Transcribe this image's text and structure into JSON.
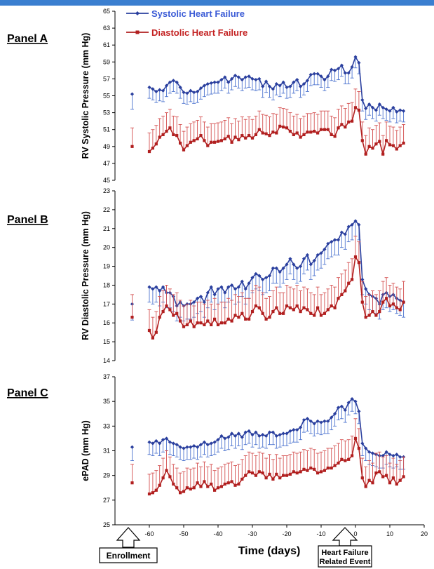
{
  "colors": {
    "background": "#1f5fb0",
    "panel": "#ffffff",
    "systolic": "#2a3f9e",
    "systolic_err": "#4d74cf",
    "diastolic": "#b11f1f",
    "diastolic_err": "#d45050"
  },
  "panel_labels": [
    "Panel A",
    "Panel B",
    "Panel C"
  ],
  "chart_data": [
    {
      "type": "line",
      "ylabel": "RV Systolic Pressure (mm Hg)",
      "ylim": [
        45,
        65
      ],
      "yticks": [
        45,
        47,
        49,
        51,
        53,
        55,
        57,
        59,
        61,
        63,
        65
      ],
      "xlim": [
        -70,
        20
      ],
      "grid": false,
      "legend": {
        "placement": "top-center",
        "entries": [
          "Systolic Heart Failure",
          "Diastolic Heart Failure"
        ]
      },
      "series": [
        {
          "name": "Systolic Heart Failure",
          "enrollment": {
            "x": -65,
            "y": 55.2,
            "err": 1.8
          },
          "x_start": -60,
          "x_step": 1,
          "values": [
            56,
            55.8,
            55.5,
            55.7,
            55.6,
            56.2,
            56.6,
            56.8,
            56.6,
            56,
            55.4,
            55.3,
            55.6,
            55.4,
            55.5,
            55.9,
            56.2,
            56.4,
            56.5,
            56.6,
            56.6,
            56.9,
            57.2,
            56.6,
            57,
            57.4,
            57.2,
            56.9,
            57.2,
            57.3,
            57,
            56.9,
            57,
            56.1,
            56.7,
            56.1,
            55.8,
            56.4,
            56.2,
            56.6,
            56,
            56.1,
            56.6,
            56.9,
            56.1,
            56.4,
            56.8,
            57.5,
            57.6,
            57.6,
            57.3,
            56.9,
            57.3,
            58.1,
            58,
            58.2,
            58.6,
            57.7,
            57.7,
            58.4,
            59.6,
            58.9,
            54.5,
            53.5,
            54,
            53.6,
            53.3,
            54,
            53.6,
            53.4,
            53.2,
            53.6,
            53.1,
            53.3,
            53.2
          ],
          "err": 1.3
        },
        {
          "name": "Diastolic Heart Failure",
          "enrollment": {
            "x": -65,
            "y": 49,
            "err": 2.2
          },
          "x_start": -60,
          "x_step": 1,
          "values": [
            48.4,
            48.8,
            49.3,
            50.1,
            50.4,
            50.8,
            51.2,
            50.4,
            50.3,
            49.4,
            48.6,
            49.1,
            49.5,
            49.7,
            49.9,
            50.3,
            49.7,
            49.1,
            49.5,
            49.5,
            49.6,
            49.7,
            49.9,
            50.2,
            49.5,
            50.1,
            49.8,
            50.3,
            50,
            50.3,
            50,
            50.4,
            51,
            50.6,
            50.5,
            50.3,
            50.7,
            50.6,
            51.4,
            51.3,
            51.2,
            50.8,
            50.4,
            50.6,
            50.1,
            50.4,
            50.7,
            50.7,
            50.8,
            50.6,
            51,
            51,
            51,
            50.4,
            50.2,
            51.2,
            51.6,
            51.3,
            51.9,
            52,
            53.6,
            53.3,
            49.7,
            48.1,
            49,
            48.8,
            49.3,
            49.6,
            48.1,
            49.7,
            49.2,
            49.1,
            48.7,
            49.1,
            49.4
          ],
          "err": 2.2
        }
      ]
    },
    {
      "type": "line",
      "ylabel": "RV Diastolic Pressure (mm Hg)",
      "ylim": [
        14,
        23
      ],
      "yticks": [
        14,
        15,
        16,
        17,
        18,
        19,
        20,
        21,
        22,
        23
      ],
      "xlim": [
        -70,
        20
      ],
      "grid": false,
      "series": [
        {
          "name": "Systolic Heart Failure",
          "enrollment": {
            "x": -65,
            "y": 17,
            "err": 0.85
          },
          "x_start": -60,
          "x_step": 1,
          "values": [
            17.9,
            17.8,
            17.9,
            17.7,
            17.9,
            17.6,
            17.6,
            17.4,
            16.9,
            17.1,
            16.9,
            17,
            17,
            17.1,
            17.3,
            17.4,
            17.1,
            17.6,
            17.9,
            17.5,
            17.8,
            17.9,
            17.6,
            17.9,
            18,
            17.8,
            17.9,
            18.2,
            17.8,
            18.1,
            18.4,
            18.6,
            18.5,
            18.3,
            18.4,
            18.5,
            18.9,
            18.9,
            18.7,
            18.9,
            19.1,
            19.4,
            19.1,
            18.9,
            19,
            19.4,
            19.6,
            19.1,
            19.3,
            19.6,
            19.7,
            19.9,
            20.2,
            20.3,
            20.4,
            20.4,
            20.8,
            20.7,
            21.1,
            21.2,
            21.4,
            21.2,
            18.3,
            17.8,
            17.5,
            17.4,
            17.3,
            17,
            17.5,
            17.6,
            17.4,
            17.5,
            17.3,
            17.2,
            17.1
          ],
          "err": 0.8
        },
        {
          "name": "Diastolic Heart Failure",
          "enrollment": {
            "x": -65,
            "y": 16.3,
            "err": 1.2
          },
          "x_start": -60,
          "x_step": 1,
          "values": [
            15.6,
            15.2,
            15.5,
            16.3,
            16.6,
            16.9,
            16.7,
            16.4,
            16.5,
            16.1,
            15.8,
            15.9,
            16.1,
            15.8,
            16,
            16,
            15.9,
            16.1,
            15.9,
            16.2,
            15.9,
            16,
            16,
            16.2,
            16.1,
            16.4,
            16.3,
            16.5,
            16.2,
            16.2,
            16.6,
            16.9,
            16.8,
            16.5,
            16.2,
            16.3,
            16.6,
            16.8,
            16.5,
            16.5,
            16.9,
            16.8,
            16.7,
            16.9,
            16.6,
            16.8,
            16.7,
            16.5,
            16.4,
            16.8,
            16.4,
            16.5,
            16.7,
            16.9,
            16.8,
            17.3,
            17.5,
            17.7,
            18.1,
            18.3,
            19.5,
            19.2,
            17.1,
            16.3,
            16.4,
            16.6,
            16.4,
            16.6,
            17.1,
            17.3,
            16.9,
            17,
            16.8,
            16.7,
            17.1
          ],
          "err": 1.1
        }
      ]
    },
    {
      "type": "line",
      "ylabel": "ePAD (mm Hg)",
      "xlabel": "Time (days)",
      "ylim": [
        25,
        37
      ],
      "yticks": [
        25,
        27,
        29,
        31,
        33,
        35,
        37
      ],
      "xlim": [
        -70,
        20
      ],
      "xticks": [
        -60,
        -50,
        -40,
        -30,
        -20,
        -10,
        0,
        10,
        20
      ],
      "grid": false,
      "series": [
        {
          "name": "Systolic Heart Failure",
          "enrollment": {
            "x": -65,
            "y": 31.3,
            "err": 1.1
          },
          "x_start": -60,
          "x_step": 1,
          "values": [
            31.7,
            31.6,
            31.8,
            31.6,
            31.9,
            32,
            31.7,
            31.6,
            31.5,
            31.3,
            31.2,
            31.3,
            31.3,
            31.4,
            31.3,
            31.5,
            31.7,
            31.5,
            31.6,
            31.7,
            31.9,
            32.2,
            32,
            32.1,
            32.4,
            32.2,
            32.4,
            32.1,
            32.5,
            32.6,
            32.3,
            32.5,
            32.2,
            32.3,
            32.2,
            32.5,
            32.5,
            32.2,
            32.3,
            32.4,
            32.4,
            32.6,
            32.7,
            32.7,
            32.9,
            33.5,
            33.6,
            33.4,
            33.2,
            33.4,
            33.3,
            33.4,
            33.4,
            33.7,
            34,
            34.5,
            34.6,
            34.3,
            34.9,
            35.2,
            35,
            34.2,
            31.6,
            31.2,
            30.9,
            30.8,
            30.7,
            30.6,
            30.6,
            30.9,
            30.7,
            30.6,
            30.7,
            30.5,
            30.5
          ],
          "err": 1.0
        },
        {
          "name": "Diastolic Heart Failure",
          "enrollment": {
            "x": -65,
            "y": 28.4,
            "err": 1.5
          },
          "x_start": -60,
          "x_step": 1,
          "values": [
            27.5,
            27.6,
            27.8,
            28.2,
            28.8,
            29.4,
            28.9,
            28.3,
            28,
            27.6,
            27.7,
            28,
            27.9,
            28,
            28.4,
            28.1,
            28.5,
            28.1,
            28.3,
            27.8,
            28,
            28.1,
            28.3,
            28.4,
            28.5,
            28.2,
            28.3,
            28.7,
            29,
            29.3,
            29.2,
            29,
            29.3,
            29.2,
            28.8,
            29.1,
            28.7,
            29.1,
            28.8,
            29,
            29,
            29.1,
            29.3,
            29.2,
            29.3,
            29.5,
            29.4,
            29.6,
            29.5,
            29.2,
            29.3,
            29.4,
            29.6,
            29.6,
            29.8,
            30,
            30.3,
            30.2,
            30.3,
            30.6,
            32,
            31.2,
            28.8,
            28.1,
            28.6,
            28.4,
            29.2,
            29.3,
            28.9,
            29,
            28.4,
            28.8,
            28.3,
            28.6,
            28.9
          ],
          "err": 1.6
        }
      ]
    }
  ],
  "annotations": {
    "enrollment_label": "Enrollment",
    "event_label_line1": "Heart Failure",
    "event_label_line2": "Related Event"
  }
}
